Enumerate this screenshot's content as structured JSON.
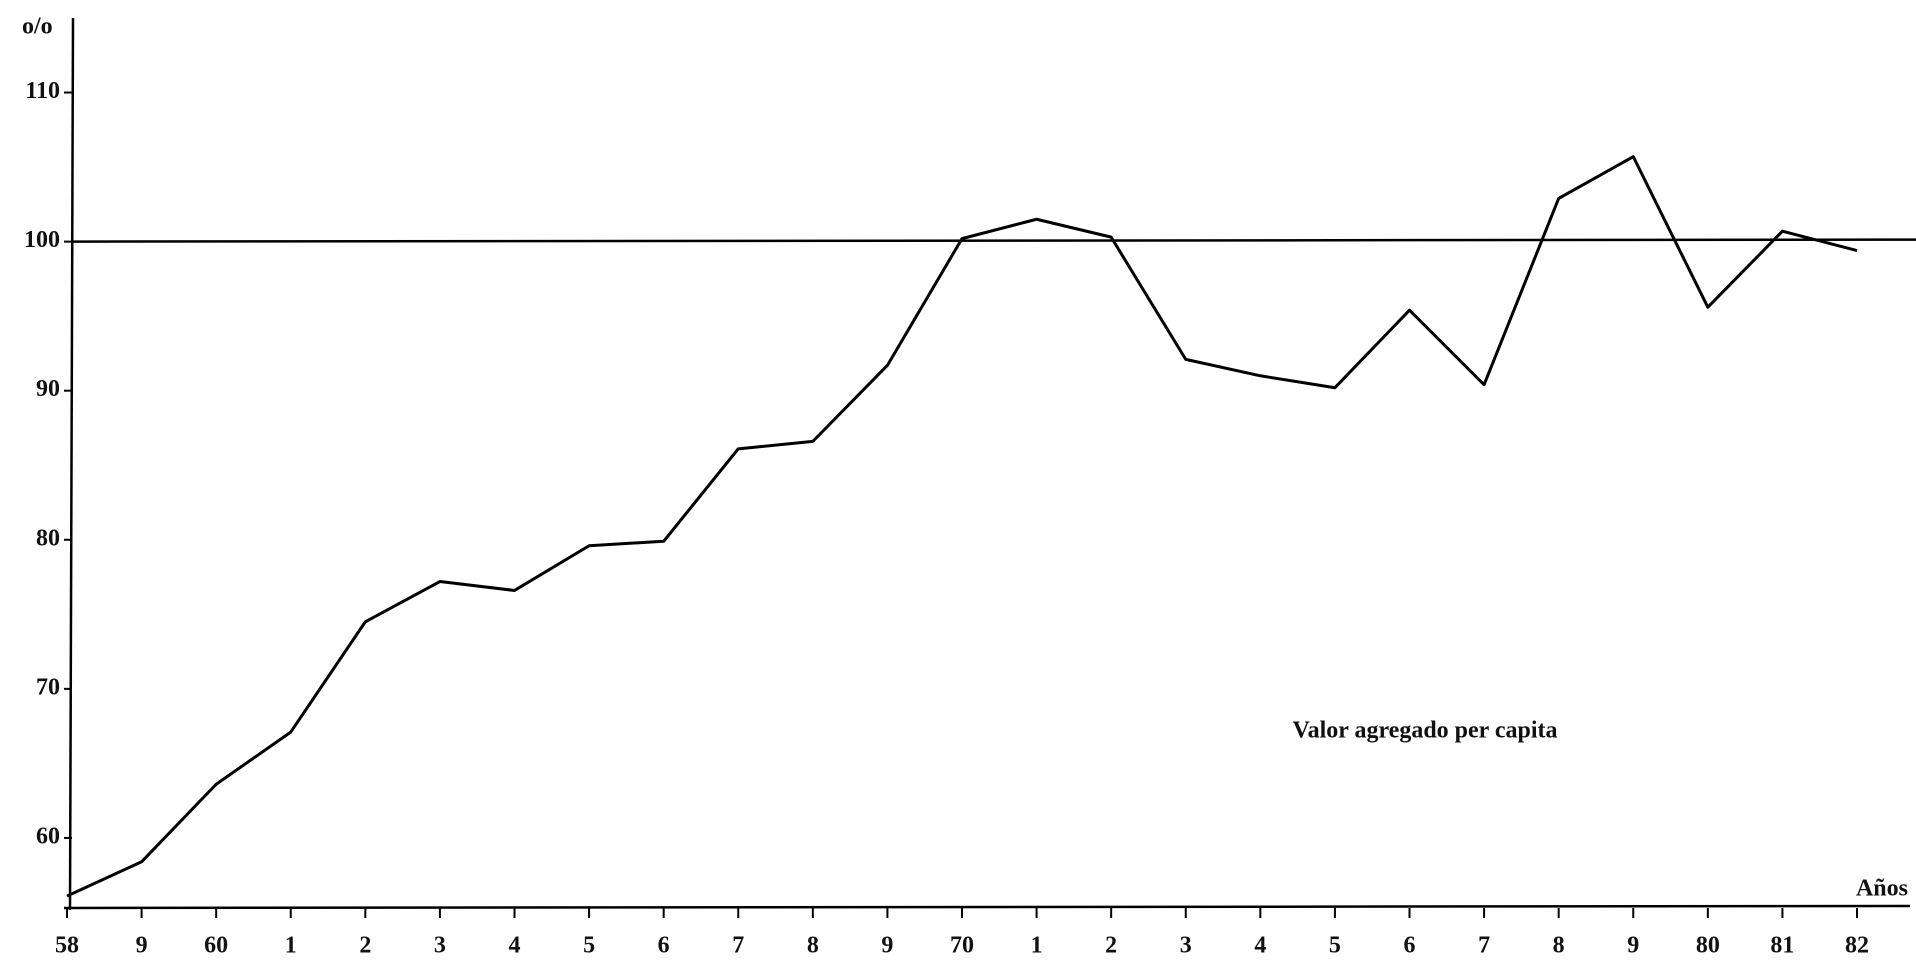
{
  "chart_data": {
    "type": "line",
    "y_label": "o/o",
    "x_label": "Años",
    "annotation": "Valor agregado per capita",
    "categories": [
      "58",
      "9",
      "60",
      "1",
      "2",
      "3",
      "4",
      "5",
      "6",
      "7",
      "8",
      "9",
      "70",
      "1",
      "2",
      "3",
      "4",
      "5",
      "6",
      "7",
      "8",
      "9",
      "80",
      "81",
      "82"
    ],
    "series": [
      {
        "name": "Valor agregado per capita",
        "color": "#000000",
        "values": [
          56.1,
          58.4,
          63.6,
          67.1,
          74.5,
          77.2,
          76.6,
          79.6,
          79.9,
          86.1,
          86.6,
          91.7,
          100.2,
          101.5,
          100.3,
          92.1,
          91.0,
          90.2,
          95.4,
          90.4,
          102.9,
          105.7,
          95.6,
          100.7,
          99.4
        ]
      }
    ],
    "reference_line": 100,
    "ylim": [
      55.3,
      115
    ],
    "yticks": [
      60,
      70,
      80,
      90,
      100,
      110
    ]
  }
}
